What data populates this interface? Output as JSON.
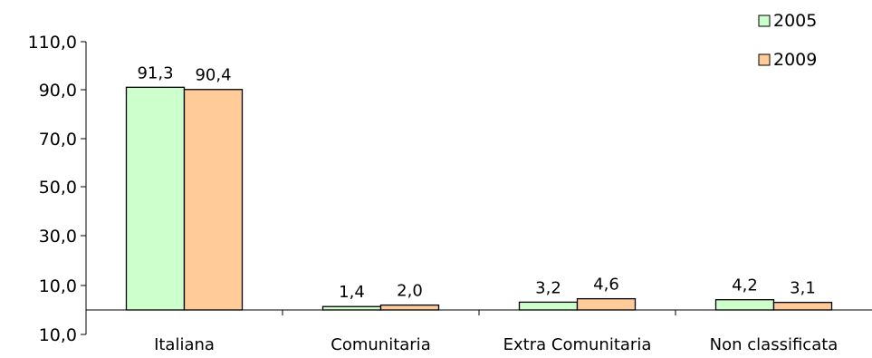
{
  "chart_data": {
    "type": "bar",
    "categories": [
      "Italiana",
      "Comunitaria",
      "Extra Comunitaria",
      "Non classificata"
    ],
    "series": [
      {
        "name": "2005",
        "values": [
          91.3,
          1.4,
          3.2,
          4.2
        ],
        "labels": [
          "91,3",
          "1,4",
          "3,2",
          "4,2"
        ],
        "color": "#ccffcc"
      },
      {
        "name": "2009",
        "values": [
          90.4,
          2.0,
          4.6,
          3.1
        ],
        "labels": [
          "90,4",
          "2,0",
          "4,6",
          "3,1"
        ],
        "color": "#ffcc99"
      }
    ],
    "y_ticks": [
      "110,0",
      "90,0",
      "70,0",
      "50,0",
      "30,0",
      "10,0",
      "10,0"
    ],
    "ylim": [
      0,
      110
    ],
    "legend_position": "top-right",
    "grid": false,
    "title": "",
    "xlabel": "",
    "ylabel": ""
  }
}
